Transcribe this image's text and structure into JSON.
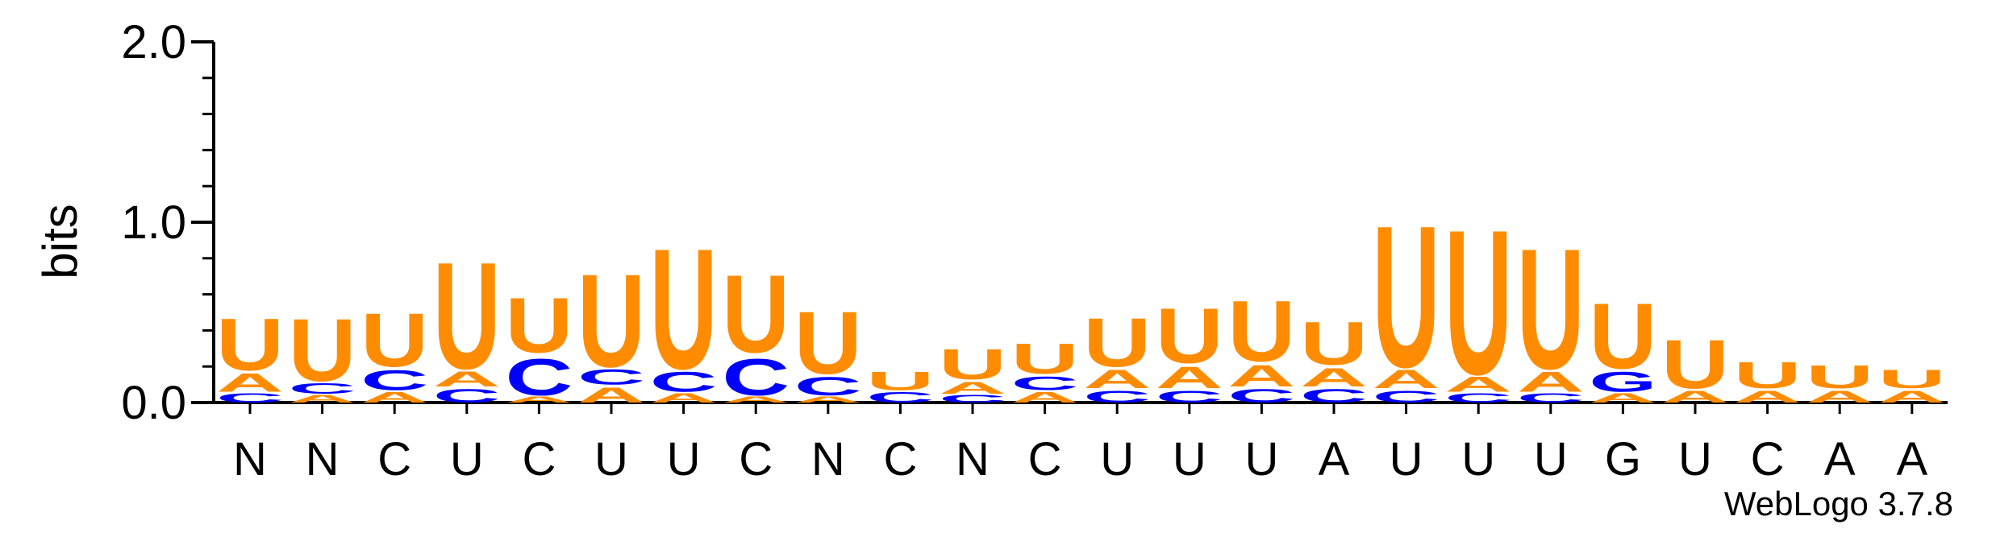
{
  "chart_data": {
    "type": "sequence-logo",
    "ylabel": "bits",
    "ylim": [
      0,
      2.0
    ],
    "yticks": [
      {
        "value": 0.0,
        "label": "0.0"
      },
      {
        "value": 1.0,
        "label": "1.0"
      },
      {
        "value": 2.0,
        "label": "2.0"
      }
    ],
    "xticks": [
      "N",
      "N",
      "C",
      "U",
      "C",
      "U",
      "U",
      "C",
      "N",
      "C",
      "N",
      "C",
      "U",
      "U",
      "U",
      "A",
      "U",
      "U",
      "U",
      "G",
      "U",
      "C",
      "A",
      "A"
    ],
    "footer": "WebLogo 3.7.8",
    "colors": {
      "U": "#ff8c00",
      "A": "#ff8c00",
      "C": "#0000ff",
      "G": "#0000ff"
    },
    "positions": [
      {
        "stack": [
          {
            "letter": "C",
            "bits": 0.06
          },
          {
            "letter": "A",
            "bits": 0.12
          },
          {
            "letter": "U",
            "bits": 0.34
          }
        ]
      },
      {
        "stack": [
          {
            "letter": "A",
            "bits": 0.05
          },
          {
            "letter": "C",
            "bits": 0.07
          },
          {
            "letter": "U",
            "bits": 0.41
          }
        ]
      },
      {
        "stack": [
          {
            "letter": "A",
            "bits": 0.07
          },
          {
            "letter": "C",
            "bits": 0.13
          },
          {
            "letter": "U",
            "bits": 0.35
          }
        ]
      },
      {
        "stack": [
          {
            "letter": "C",
            "bits": 0.09
          },
          {
            "letter": "A",
            "bits": 0.1
          },
          {
            "letter": "U",
            "bits": 0.7
          }
        ]
      },
      {
        "stack": [
          {
            "letter": "A",
            "bits": 0.04
          },
          {
            "letter": "C",
            "bits": 0.24
          },
          {
            "letter": "U",
            "bits": 0.36
          }
        ]
      },
      {
        "stack": [
          {
            "letter": "A",
            "bits": 0.1
          },
          {
            "letter": "C",
            "bits": 0.1
          },
          {
            "letter": "U",
            "bits": 0.61
          }
        ]
      },
      {
        "stack": [
          {
            "letter": "A",
            "bits": 0.06
          },
          {
            "letter": "C",
            "bits": 0.13
          },
          {
            "letter": "U",
            "bits": 0.79
          }
        ]
      },
      {
        "stack": [
          {
            "letter": "A",
            "bits": 0.04
          },
          {
            "letter": "C",
            "bits": 0.24
          },
          {
            "letter": "U",
            "bits": 0.51
          }
        ]
      },
      {
        "stack": [
          {
            "letter": "A",
            "bits": 0.04
          },
          {
            "letter": "C",
            "bits": 0.12
          },
          {
            "letter": "U",
            "bits": 0.41
          }
        ]
      },
      {
        "stack": [
          {
            "letter": "C",
            "bits": 0.07
          },
          {
            "letter": "U",
            "bits": 0.12
          }
        ]
      },
      {
        "stack": [
          {
            "letter": "C",
            "bits": 0.05
          },
          {
            "letter": "A",
            "bits": 0.08
          },
          {
            "letter": "U",
            "bits": 0.2
          }
        ]
      },
      {
        "stack": [
          {
            "letter": "A",
            "bits": 0.07
          },
          {
            "letter": "C",
            "bits": 0.09
          },
          {
            "letter": "U",
            "bits": 0.2
          }
        ]
      },
      {
        "stack": [
          {
            "letter": "C",
            "bits": 0.08
          },
          {
            "letter": "A",
            "bits": 0.12
          },
          {
            "letter": "U",
            "bits": 0.32
          }
        ]
      },
      {
        "stack": [
          {
            "letter": "C",
            "bits": 0.08
          },
          {
            "letter": "A",
            "bits": 0.14
          },
          {
            "letter": "U",
            "bits": 0.36
          }
        ]
      },
      {
        "stack": [
          {
            "letter": "C",
            "bits": 0.09
          },
          {
            "letter": "A",
            "bits": 0.14
          },
          {
            "letter": "U",
            "bits": 0.4
          }
        ]
      },
      {
        "stack": [
          {
            "letter": "C",
            "bits": 0.09
          },
          {
            "letter": "A",
            "bits": 0.12
          },
          {
            "letter": "U",
            "bits": 0.28
          }
        ]
      },
      {
        "stack": [
          {
            "letter": "C",
            "bits": 0.08
          },
          {
            "letter": "A",
            "bits": 0.12
          },
          {
            "letter": "U",
            "bits": 0.93
          }
        ]
      },
      {
        "stack": [
          {
            "letter": "C",
            "bits": 0.06
          },
          {
            "letter": "A",
            "bits": 0.1
          },
          {
            "letter": "U",
            "bits": 0.95
          }
        ]
      },
      {
        "stack": [
          {
            "letter": "C",
            "bits": 0.06
          },
          {
            "letter": "A",
            "bits": 0.13
          },
          {
            "letter": "U",
            "bits": 0.79
          }
        ]
      },
      {
        "stack": [
          {
            "letter": "A",
            "bits": 0.06
          },
          {
            "letter": "G",
            "bits": 0.13
          },
          {
            "letter": "U",
            "bits": 0.43
          }
        ]
      },
      {
        "stack": [
          {
            "letter": "A",
            "bits": 0.08
          },
          {
            "letter": "U",
            "bits": 0.32
          }
        ]
      },
      {
        "stack": [
          {
            "letter": "A",
            "bits": 0.08
          },
          {
            "letter": "U",
            "bits": 0.17
          }
        ]
      },
      {
        "stack": [
          {
            "letter": "A",
            "bits": 0.08
          },
          {
            "letter": "U",
            "bits": 0.15
          }
        ]
      },
      {
        "stack": [
          {
            "letter": "A",
            "bits": 0.08
          },
          {
            "letter": "U",
            "bits": 0.12
          }
        ]
      }
    ]
  }
}
